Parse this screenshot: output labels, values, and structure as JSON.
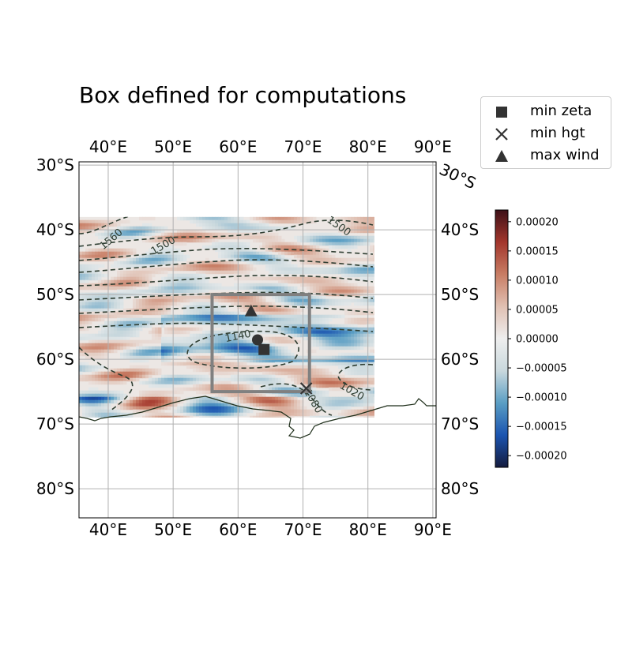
{
  "chart_data": {
    "type": "heatmap",
    "title": "Box defined for computations",
    "x_axis": {
      "range": [
        35.5,
        90.5
      ],
      "ticks": [
        40,
        50,
        60,
        70,
        80,
        90
      ],
      "tick_labels": [
        "40°E",
        "50°E",
        "60°E",
        "70°E",
        "80°E",
        "90°E"
      ]
    },
    "y_axis": {
      "range": [
        -84.5,
        -29.5
      ],
      "ticks": [
        -30,
        -40,
        -50,
        -60,
        -70,
        -80
      ],
      "tick_labels": [
        "30°S",
        "40°S",
        "50°S",
        "60°S",
        "70°S",
        "80°S"
      ]
    },
    "grid": true,
    "data_extent": {
      "lon": [
        35.5,
        81
      ],
      "lat": [
        -69,
        -38
      ]
    },
    "computation_box": {
      "lon": [
        56,
        71
      ],
      "lat": [
        -65,
        -50
      ],
      "color": "#808080"
    },
    "markers": [
      {
        "name": "min zeta",
        "symbol": "square",
        "lon": 64,
        "lat": -58.5
      },
      {
        "name": "min hgt",
        "symbol": "x",
        "lon": 70.5,
        "lat": -64.5
      },
      {
        "name": "max wind",
        "symbol": "triangle",
        "lon": 62,
        "lat": -52.5
      },
      {
        "name": "",
        "symbol": "circle",
        "lon": 63,
        "lat": -57
      }
    ],
    "contour_labels": [
      {
        "text": "1560",
        "lon": 40.5,
        "lat": -41.5,
        "angle": -40
      },
      {
        "text": "1500",
        "lon": 48.5,
        "lat": -42.5,
        "angle": -30
      },
      {
        "text": "1500",
        "lon": 75.5,
        "lat": -39.5,
        "angle": 35
      },
      {
        "text": "1140",
        "lon": 60,
        "lat": -56.5,
        "angle": -12
      },
      {
        "text": "1080",
        "lon": 71.5,
        "lat": -66.5,
        "angle": 60
      },
      {
        "text": "1020",
        "lon": 77.5,
        "lat": -65,
        "angle": 30
      }
    ],
    "legend": {
      "placement": "upper-right, outside axes",
      "entries": [
        "min zeta",
        "min hgt",
        "max wind"
      ]
    },
    "colorbar": {
      "range": [
        -0.00022,
        0.00022
      ],
      "ticks": [
        "0.00020",
        "0.00015",
        "0.00010",
        "0.00005",
        "0.00000",
        "−0.00005",
        "−0.00010",
        "−0.00015",
        "−0.00020"
      ],
      "tick_values": [
        0.0002,
        0.00015,
        0.0001,
        5e-05,
        0,
        -5e-05,
        -0.0001,
        -0.00015,
        -0.0002
      ],
      "colormap": [
        "#141b3e",
        "#1b54b0",
        "#5a9ec4",
        "#c9d8dd",
        "#eeeeee",
        "#e0c0b2",
        "#c87d64",
        "#a3362c",
        "#3e1118"
      ]
    },
    "colors": {
      "contour": "#2f3e32",
      "coast": "#1e2e1a",
      "grid": "#b0b0b0",
      "marker": "#333333"
    }
  }
}
